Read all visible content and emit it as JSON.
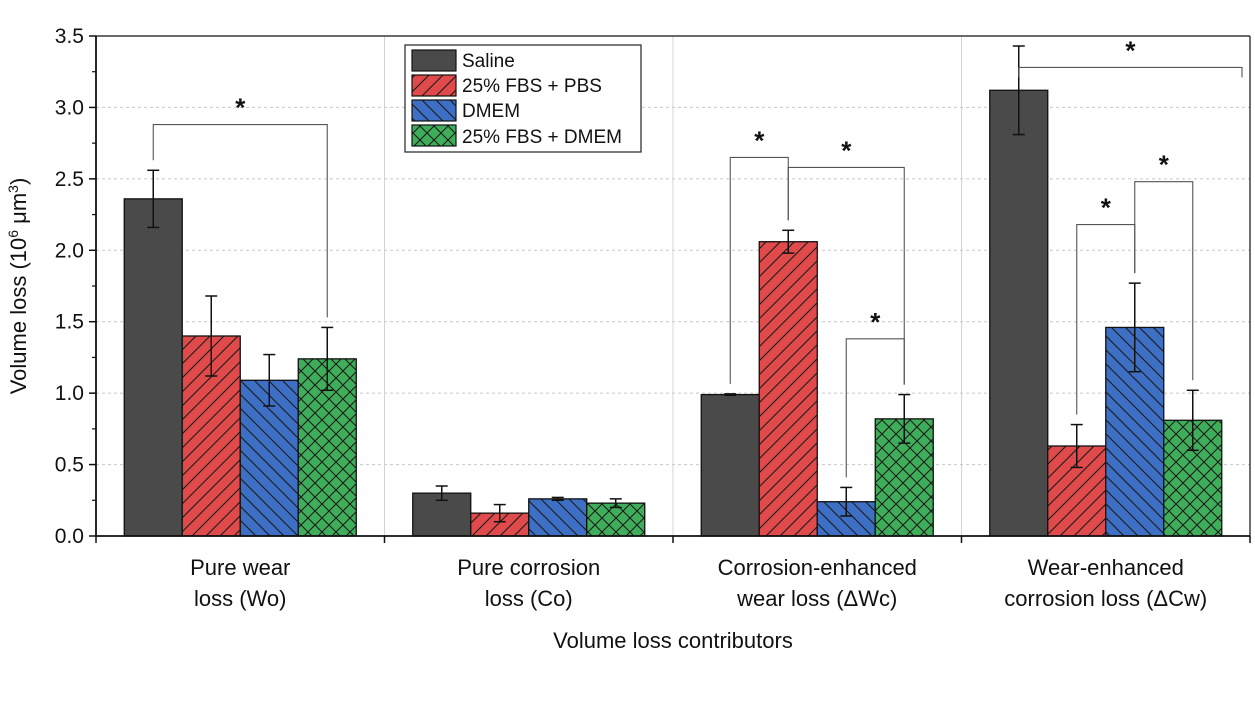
{
  "chart_data": {
    "type": "bar",
    "xlabel": "Volume loss contributors",
    "ylabel": "Volume loss (10",
    "ylabel_sup1": "6",
    "ylabel_mid": " μm",
    "ylabel_sup2": "3",
    "ylabel_end": ")",
    "ylim": [
      0,
      3.5
    ],
    "yticks": [
      "0.0",
      "0.5",
      "1.0",
      "1.5",
      "2.0",
      "2.5",
      "3.0",
      "3.5"
    ],
    "categories": [
      [
        "Pure wear",
        "loss (Wo)"
      ],
      [
        "Pure corrosion",
        "loss (Co)"
      ],
      [
        "Corrosion-enhanced",
        "wear loss (ΔWc)"
      ],
      [
        "Wear-enhanced",
        "corrosion loss (ΔCw)"
      ]
    ],
    "series": [
      {
        "name": "Saline",
        "color": "#4a4a4a",
        "pattern": "solid",
        "values": [
          2.36,
          0.3,
          0.99,
          3.12
        ],
        "errors": [
          0.2,
          0.05,
          0.005,
          0.31
        ]
      },
      {
        "name": "25% FBS + PBS",
        "color": "#e04a4a",
        "pattern": "diag-up",
        "values": [
          1.4,
          0.16,
          2.06,
          0.63
        ],
        "errors": [
          0.28,
          0.06,
          0.08,
          0.15
        ]
      },
      {
        "name": "DMEM",
        "color": "#3d6fc4",
        "pattern": "diag-down",
        "values": [
          1.09,
          0.26,
          0.24,
          1.46
        ],
        "errors": [
          0.18,
          0.01,
          0.1,
          0.31
        ]
      },
      {
        "name": "25% FBS + DMEM",
        "color": "#3fae5a",
        "pattern": "crosshatch",
        "values": [
          1.24,
          0.23,
          0.82,
          0.81
        ],
        "errors": [
          0.22,
          0.03,
          0.17,
          0.21
        ]
      }
    ],
    "grid": {
      "y": true,
      "x_separators": true
    },
    "legend": "top-center",
    "significance": [
      {
        "group": 0,
        "from": 0,
        "to": 3,
        "y": 2.88,
        "label": "*"
      },
      {
        "group": 2,
        "from": 0,
        "to": 1,
        "y": 2.65,
        "label": "*"
      },
      {
        "group": 2,
        "from": 1,
        "to": 3,
        "y": 2.58,
        "label": "*"
      },
      {
        "group": 2,
        "from": 2,
        "to": 3,
        "y": 1.38,
        "label": "*"
      },
      {
        "group": 3,
        "from": 0,
        "to": 4,
        "y": 3.28,
        "label": "*"
      },
      {
        "group": 3,
        "from": 1,
        "to": 2,
        "y": 2.18,
        "label": "*"
      },
      {
        "group": 3,
        "from": 2,
        "to": 3,
        "y": 2.48,
        "label": "*"
      }
    ]
  }
}
